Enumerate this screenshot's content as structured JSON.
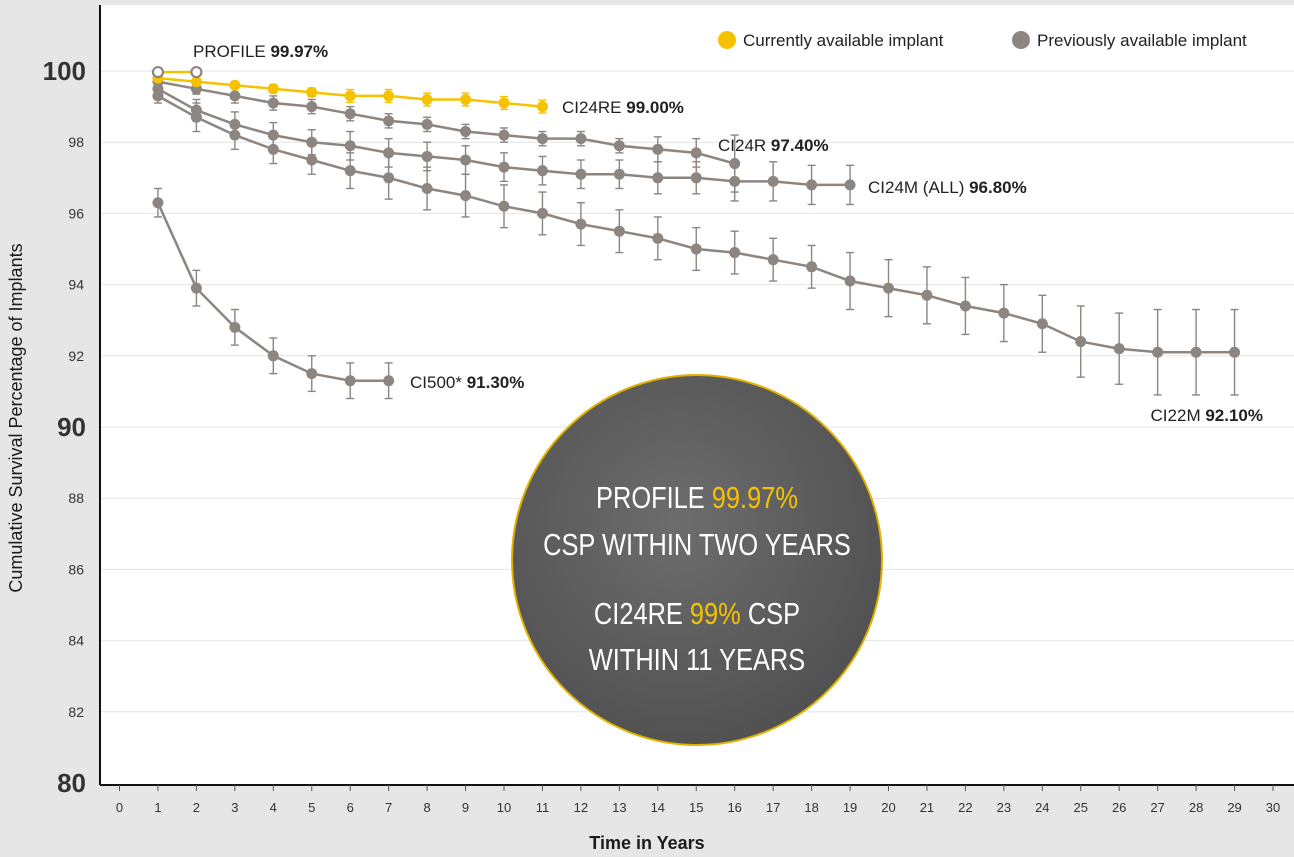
{
  "chart_data": {
    "type": "line",
    "xlabel": "Time in Years",
    "ylabel": "Cumulative Survival Percentage of Implants",
    "xlim": [
      0,
      30
    ],
    "ylim": [
      80,
      102
    ],
    "x_ticks": [
      "0",
      "1",
      "2",
      "3",
      "4",
      "5",
      "6",
      "7",
      "8",
      "9",
      "10",
      "11",
      "12",
      "13",
      "14",
      "15",
      "16",
      "17",
      "18",
      "19",
      "20",
      "21",
      "22",
      "23",
      "24",
      "25",
      "26",
      "27",
      "28",
      "29",
      "30"
    ],
    "y_ticks_major": [
      "80",
      "90",
      "100"
    ],
    "y_ticks_minor": [
      "82",
      "84",
      "86",
      "88",
      "92",
      "94",
      "96",
      "98"
    ],
    "grid": true,
    "legend_position": "top-right",
    "legend": [
      {
        "label": "Currently available implant",
        "color": "#f6c200"
      },
      {
        "label": "Previously available implant",
        "color": "#8d8580"
      }
    ],
    "series": [
      {
        "id": "profile",
        "label_name": "PROFILE",
        "label_value": "99.97%",
        "color": "#f6c200",
        "hollow": true,
        "x": [
          1,
          2
        ],
        "y": [
          99.97,
          99.97
        ],
        "err": [
          0.05,
          0.05
        ]
      },
      {
        "id": "ci24re",
        "label_name": "CI24RE",
        "label_value": "99.00%",
        "color": "#f6c200",
        "hollow": false,
        "x": [
          1,
          2,
          3,
          4,
          5,
          6,
          7,
          8,
          9,
          10,
          11
        ],
        "y": [
          99.8,
          99.7,
          99.6,
          99.5,
          99.4,
          99.3,
          99.3,
          99.2,
          99.2,
          99.1,
          99.0
        ],
        "err": [
          0.05,
          0.05,
          0.1,
          0.12,
          0.12,
          0.18,
          0.18,
          0.18,
          0.18,
          0.18,
          0.18
        ]
      },
      {
        "id": "ci24r",
        "label_name": "CI24R",
        "label_value": "97.40%",
        "color": "#8d8580",
        "hollow": false,
        "x": [
          1,
          2,
          3,
          4,
          5,
          6,
          7,
          8,
          9,
          10,
          11,
          12,
          13,
          14,
          15,
          16
        ],
        "y": [
          99.7,
          99.5,
          99.3,
          99.1,
          99.0,
          98.8,
          98.6,
          98.5,
          98.3,
          98.2,
          98.1,
          98.1,
          97.9,
          97.8,
          97.7,
          97.4
        ],
        "err": [
          0.1,
          0.15,
          0.2,
          0.2,
          0.2,
          0.2,
          0.2,
          0.2,
          0.2,
          0.2,
          0.2,
          0.2,
          0.2,
          0.35,
          0.4,
          0.8
        ]
      },
      {
        "id": "ci24m",
        "label_name": "CI24M (ALL)",
        "label_value": "96.80%",
        "color": "#8d8580",
        "hollow": false,
        "x": [
          1,
          2,
          3,
          4,
          5,
          6,
          7,
          8,
          9,
          10,
          11,
          12,
          13,
          14,
          15,
          16,
          17,
          18,
          19
        ],
        "y": [
          99.5,
          98.9,
          98.5,
          98.2,
          98.0,
          97.9,
          97.7,
          97.6,
          97.5,
          97.3,
          97.2,
          97.1,
          97.1,
          97.0,
          97.0,
          96.9,
          96.9,
          96.8,
          96.8
        ],
        "err": [
          0.2,
          0.3,
          0.35,
          0.35,
          0.35,
          0.4,
          0.4,
          0.4,
          0.4,
          0.4,
          0.4,
          0.4,
          0.4,
          0.45,
          0.45,
          0.55,
          0.55,
          0.55,
          0.55
        ]
      },
      {
        "id": "ci22m",
        "label_name": "CI22M",
        "label_value": "92.10%",
        "color": "#8d8580",
        "hollow": false,
        "x": [
          1,
          2,
          3,
          4,
          5,
          6,
          7,
          8,
          9,
          10,
          11,
          12,
          13,
          14,
          15,
          16,
          17,
          18,
          19,
          20,
          21,
          22,
          23,
          24,
          25,
          26,
          27,
          28,
          29
        ],
        "y": [
          99.3,
          98.7,
          98.2,
          97.8,
          97.5,
          97.2,
          97.0,
          96.7,
          96.5,
          96.2,
          96.0,
          95.7,
          95.5,
          95.3,
          95.0,
          94.9,
          94.7,
          94.5,
          94.1,
          93.9,
          93.7,
          93.4,
          93.2,
          92.9,
          92.4,
          92.2,
          92.1,
          92.1,
          92.1
        ],
        "err": [
          0.2,
          0.4,
          0.4,
          0.4,
          0.4,
          0.5,
          0.6,
          0.6,
          0.6,
          0.6,
          0.6,
          0.6,
          0.6,
          0.6,
          0.6,
          0.6,
          0.6,
          0.6,
          0.8,
          0.8,
          0.8,
          0.8,
          0.8,
          0.8,
          1.0,
          1.0,
          1.2,
          1.2,
          1.2
        ]
      },
      {
        "id": "ci500",
        "label_name": "CI500*",
        "label_value": "91.30%",
        "color": "#8d8580",
        "hollow": false,
        "x": [
          1,
          2,
          3,
          4,
          5,
          6,
          7
        ],
        "y": [
          96.3,
          93.9,
          92.8,
          92.0,
          91.5,
          91.3,
          91.3
        ],
        "err": [
          0.4,
          0.5,
          0.5,
          0.5,
          0.5,
          0.5,
          0.5
        ]
      }
    ],
    "badge": {
      "line1_a": "PROFILE",
      "line1_b": "99.97%",
      "line2": "CSP WITHIN TWO YEARS",
      "line3_a": "CI24RE",
      "line3_b": "99%",
      "line3_c": "CSP",
      "line4": "WITHIN 11 YEARS"
    }
  }
}
